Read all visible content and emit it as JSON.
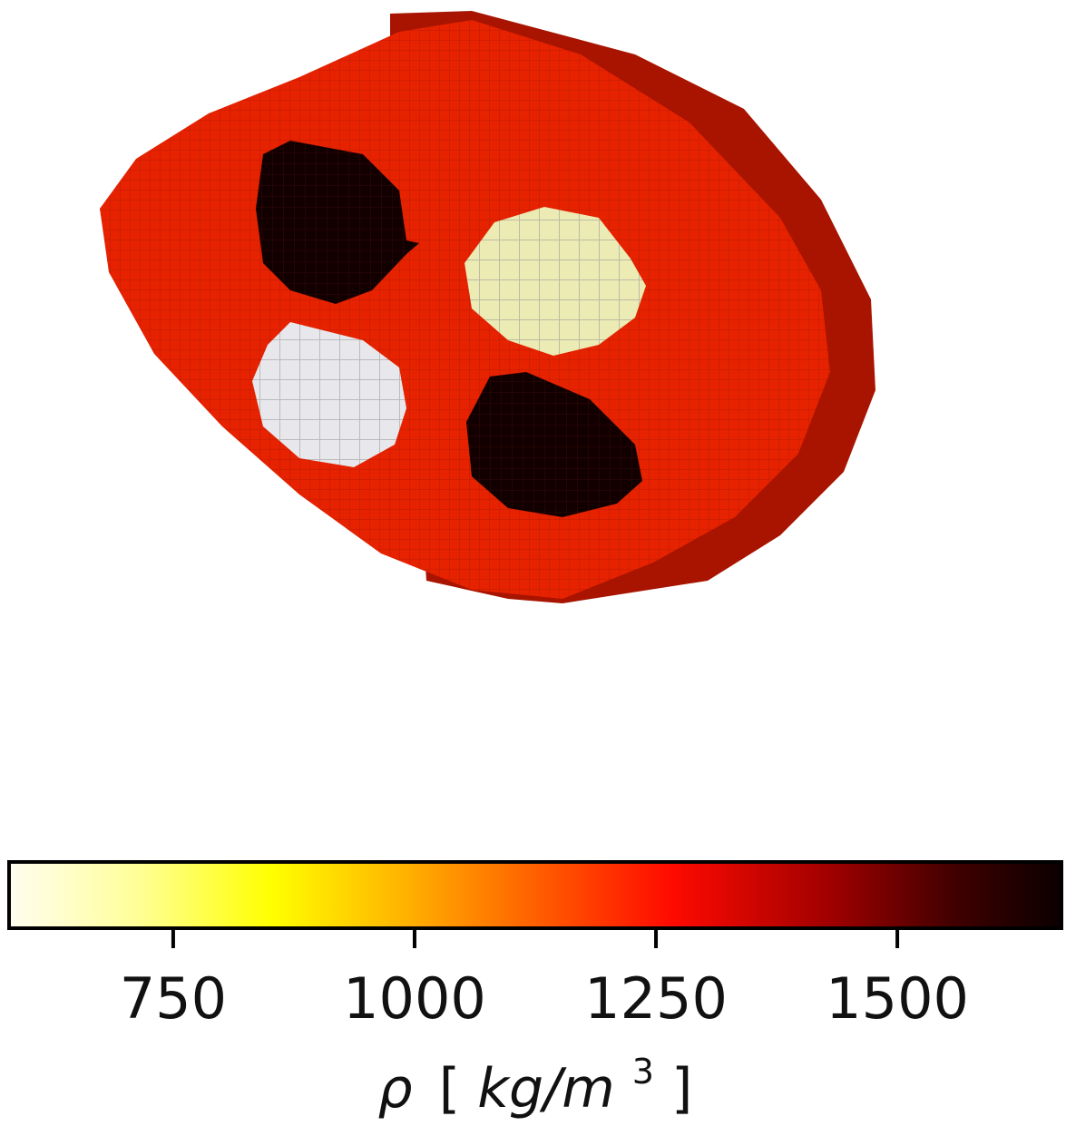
{
  "chart_data": {
    "type": "heatmap",
    "title": "",
    "description_kind": "voxel density model",
    "colormap": "hot_r",
    "colorbar": {
      "orientation": "horizontal",
      "min": 580,
      "max": 1670,
      "ticks": [
        750,
        1000,
        1250,
        1500
      ],
      "tick_labels": [
        "750",
        "1000",
        "1250",
        "1500"
      ],
      "label": "ρ [kg/m³]",
      "label_symbol": "ρ",
      "label_unit_open": "[",
      "label_unit_main": "kg/m",
      "label_unit_exp": "3",
      "label_unit_close": "]"
    },
    "regions": [
      {
        "name": "body",
        "density": 1220,
        "color": "#e62200"
      },
      {
        "name": "inclusion-upper-left",
        "density": 1670,
        "color": "#120000"
      },
      {
        "name": "inclusion-upper-right",
        "density": 660,
        "color": "#ecebb4"
      },
      {
        "name": "inclusion-lower-left",
        "density": 590,
        "color": "#e8e8ec"
      },
      {
        "name": "inclusion-lower-right",
        "density": 1670,
        "color": "#120000"
      }
    ]
  }
}
